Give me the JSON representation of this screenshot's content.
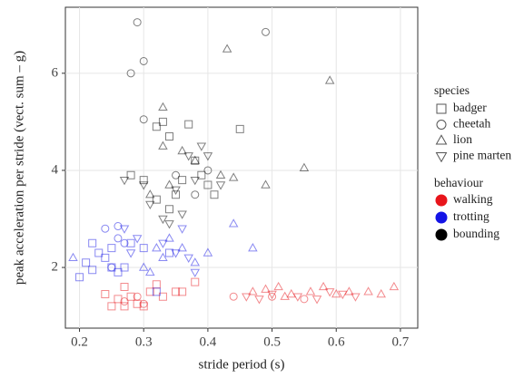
{
  "chart_data": {
    "type": "scatter",
    "xlabel": "stride period (s)",
    "ylabel": "peak acceleration per stride (vect. sum – g)",
    "xlim": [
      0.178,
      0.727
    ],
    "ylim": [
      0.75,
      7.36
    ],
    "xticks": [
      0.2,
      0.3,
      0.4,
      0.5,
      0.6,
      0.7
    ],
    "yticks": [
      2,
      4,
      6
    ],
    "grid": true,
    "legend": {
      "species": {
        "title": "species",
        "items": [
          {
            "name": "badger",
            "shape": "square"
          },
          {
            "name": "cheetah",
            "shape": "circle"
          },
          {
            "name": "lion",
            "shape": "triangle"
          },
          {
            "name": "pine marten",
            "shape": "triangle-down"
          }
        ]
      },
      "behaviour": {
        "title": "behaviour",
        "items": [
          {
            "name": "walking",
            "color": "#e8151b"
          },
          {
            "name": "trotting",
            "color": "#1414e6"
          },
          {
            "name": "bounding",
            "color": "#000000"
          }
        ]
      }
    },
    "series": [
      {
        "species": "badger",
        "behaviour": "walking",
        "x": [
          0.24,
          0.25,
          0.26,
          0.27,
          0.28,
          0.29,
          0.3,
          0.31,
          0.32,
          0.33,
          0.35,
          0.36,
          0.38,
          0.27
        ],
        "y": [
          1.45,
          1.2,
          1.35,
          1.2,
          1.4,
          1.25,
          1.2,
          1.5,
          1.65,
          1.4,
          1.5,
          1.5,
          1.7,
          1.6
        ]
      },
      {
        "species": "cheetah",
        "behaviour": "walking",
        "x": [
          0.27,
          0.29,
          0.3,
          0.44,
          0.5,
          0.55
        ],
        "y": [
          1.3,
          1.4,
          1.25,
          1.4,
          1.4,
          1.35
        ]
      },
      {
        "species": "lion",
        "behaviour": "walking",
        "x": [
          0.47,
          0.49,
          0.51,
          0.53,
          0.56,
          0.58,
          0.6,
          0.62,
          0.65,
          0.67,
          0.69,
          0.52
        ],
        "y": [
          1.5,
          1.55,
          1.6,
          1.45,
          1.5,
          1.6,
          1.45,
          1.5,
          1.5,
          1.45,
          1.6,
          1.4
        ]
      },
      {
        "species": "pine marten",
        "behaviour": "walking",
        "x": [
          0.46,
          0.48,
          0.54,
          0.57,
          0.61,
          0.63,
          0.59,
          0.5
        ],
        "y": [
          1.4,
          1.35,
          1.4,
          1.35,
          1.45,
          1.4,
          1.5,
          1.45
        ]
      },
      {
        "species": "badger",
        "behaviour": "trotting",
        "x": [
          0.2,
          0.21,
          0.22,
          0.23,
          0.24,
          0.25,
          0.25,
          0.26,
          0.27,
          0.28,
          0.3,
          0.32,
          0.34,
          0.22
        ],
        "y": [
          1.8,
          2.1,
          2.5,
          2.3,
          2.2,
          2.0,
          2.4,
          1.9,
          2.0,
          2.5,
          2.4,
          1.5,
          2.3,
          1.95
        ]
      },
      {
        "species": "cheetah",
        "behaviour": "trotting",
        "x": [
          0.24,
          0.26,
          0.26,
          0.27,
          0.25
        ],
        "y": [
          2.8,
          2.85,
          2.6,
          2.5,
          2.0
        ]
      },
      {
        "species": "lion",
        "behaviour": "trotting",
        "x": [
          0.19,
          0.3,
          0.32,
          0.33,
          0.34,
          0.36,
          0.38,
          0.4,
          0.44,
          0.47,
          0.31
        ],
        "y": [
          2.2,
          2.0,
          2.4,
          2.2,
          2.6,
          2.4,
          2.1,
          2.3,
          2.9,
          2.4,
          1.9
        ]
      },
      {
        "species": "pine marten",
        "behaviour": "trotting",
        "x": [
          0.27,
          0.29,
          0.33,
          0.35,
          0.37,
          0.38,
          0.28,
          0.36
        ],
        "y": [
          2.8,
          2.6,
          2.5,
          2.3,
          2.2,
          1.9,
          2.3,
          2.8
        ]
      },
      {
        "species": "badger",
        "behaviour": "bounding",
        "x": [
          0.32,
          0.33,
          0.34,
          0.28,
          0.3,
          0.32,
          0.35,
          0.37,
          0.38,
          0.39,
          0.4,
          0.41,
          0.36,
          0.34,
          0.45
        ],
        "y": [
          4.9,
          5.0,
          4.7,
          3.9,
          3.8,
          3.4,
          3.5,
          4.95,
          4.2,
          3.9,
          3.7,
          3.5,
          3.8,
          3.2,
          4.85
        ]
      },
      {
        "species": "cheetah",
        "behaviour": "bounding",
        "x": [
          0.29,
          0.3,
          0.28,
          0.3,
          0.49,
          0.38,
          0.4,
          0.35
        ],
        "y": [
          7.05,
          6.25,
          6.0,
          5.05,
          6.85,
          3.5,
          4.0,
          3.9
        ]
      },
      {
        "species": "lion",
        "behaviour": "bounding",
        "x": [
          0.33,
          0.43,
          0.59,
          0.55,
          0.49,
          0.44,
          0.33,
          0.36,
          0.38,
          0.31,
          0.34,
          0.42
        ],
        "y": [
          5.3,
          6.5,
          5.85,
          4.05,
          3.7,
          3.85,
          4.5,
          4.4,
          4.2,
          3.5,
          3.7,
          3.9
        ]
      },
      {
        "species": "pine marten",
        "behaviour": "bounding",
        "x": [
          0.27,
          0.3,
          0.31,
          0.33,
          0.35,
          0.37,
          0.39,
          0.4,
          0.42,
          0.38,
          0.34,
          0.36
        ],
        "y": [
          3.8,
          3.7,
          3.3,
          3.0,
          3.6,
          4.3,
          4.5,
          4.3,
          3.7,
          3.8,
          2.9,
          3.1
        ]
      }
    ]
  }
}
